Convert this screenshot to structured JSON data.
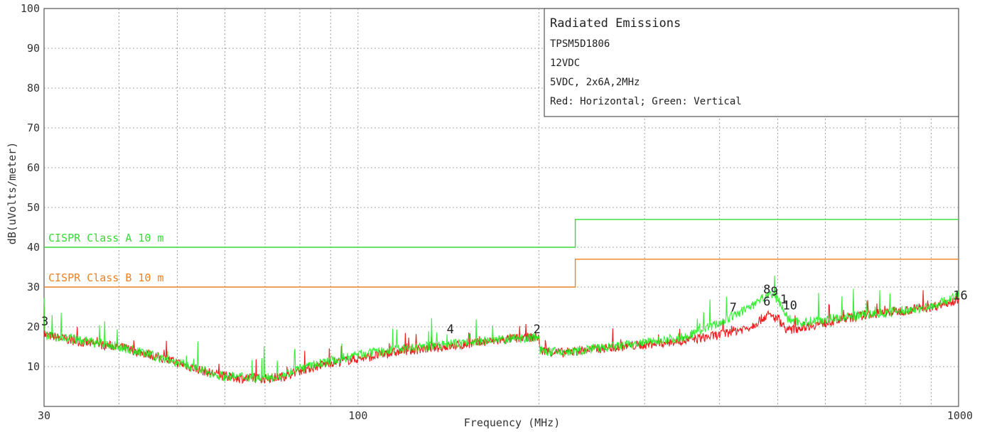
{
  "chart_data": {
    "type": "line",
    "xlabel": "Frequency (MHz)",
    "ylabel": "dB(uVolts/meter)",
    "xscale": "log",
    "xlim": [
      30,
      1000
    ],
    "ylim": [
      0,
      100
    ],
    "x_ticks": [
      30,
      100,
      1000
    ],
    "x_tick_labels": [
      "30",
      "100",
      "1000"
    ],
    "y_ticks": [
      10,
      20,
      30,
      40,
      50,
      60,
      70,
      80,
      90,
      100
    ],
    "grid": true,
    "legend": {
      "placement": "top-right",
      "title": "Radiated Emissions",
      "lines": [
        "TPSM5D1806",
        "12VDC",
        "5VDC, 2x6A,2MHz",
        "Red: Horizontal; Green: Vertical"
      ]
    },
    "limits": [
      {
        "name": "CISPR Class A 10 m",
        "color": "#33dd33",
        "segments": [
          [
            30,
            230,
            40
          ],
          [
            230,
            1000,
            47
          ]
        ]
      },
      {
        "name": "CISPR Class B 10 m",
        "color": "#f08020",
        "segments": [
          [
            30,
            230,
            30
          ],
          [
            230,
            1000,
            37
          ]
        ]
      }
    ],
    "series": [
      {
        "color": "#ee1111",
        "x": [
          30,
          35,
          40,
          45,
          50,
          55,
          60,
          65,
          70,
          75,
          80,
          90,
          100,
          120,
          150,
          180,
          200,
          201,
          220,
          250,
          300,
          350,
          400,
          450,
          480,
          500,
          520,
          550,
          600,
          700,
          800,
          900,
          1000
        ],
        "y": [
          18,
          16,
          15,
          13,
          11,
          9,
          7.5,
          7,
          7,
          7.5,
          9,
          11,
          12,
          14,
          15.5,
          17,
          17.5,
          14,
          13.5,
          14.5,
          15.5,
          16.5,
          18,
          20,
          23,
          22,
          19,
          20,
          21,
          23,
          24,
          25,
          27
        ]
      },
      {
        "color": "#22ee22",
        "x": [
          30,
          35,
          40,
          45,
          50,
          55,
          60,
          65,
          70,
          75,
          80,
          90,
          100,
          120,
          150,
          180,
          200,
          201,
          220,
          250,
          300,
          350,
          400,
          450,
          480,
          500,
          520,
          550,
          600,
          700,
          800,
          900,
          1000
        ],
        "y": [
          18,
          16.5,
          15,
          13,
          11,
          9,
          7.5,
          7.5,
          7,
          8,
          9.5,
          11.5,
          13,
          14.5,
          16,
          17,
          17.5,
          14,
          13.5,
          14.5,
          16,
          17.5,
          21,
          25,
          28,
          27,
          22,
          21,
          22,
          23,
          24,
          25,
          28
        ]
      }
    ],
    "markers": [
      {
        "label": "3",
        "x": 30,
        "y": 20
      },
      {
        "label": "4",
        "x": 142,
        "y": 18
      },
      {
        "label": "2",
        "x": 198,
        "y": 18
      },
      {
        "label": "7",
        "x": 420,
        "y": 23.5
      },
      {
        "label": "8",
        "x": 478,
        "y": 28
      },
      {
        "label": "9",
        "x": 492,
        "y": 27.5
      },
      {
        "label": "10",
        "x": 515,
        "y": 24
      },
      {
        "label": "6",
        "x": 478,
        "y": 25
      },
      {
        "label": "1",
        "x": 510,
        "y": 25.5
      },
      {
        "label": "16",
        "x": 990,
        "y": 26.5
      }
    ]
  }
}
